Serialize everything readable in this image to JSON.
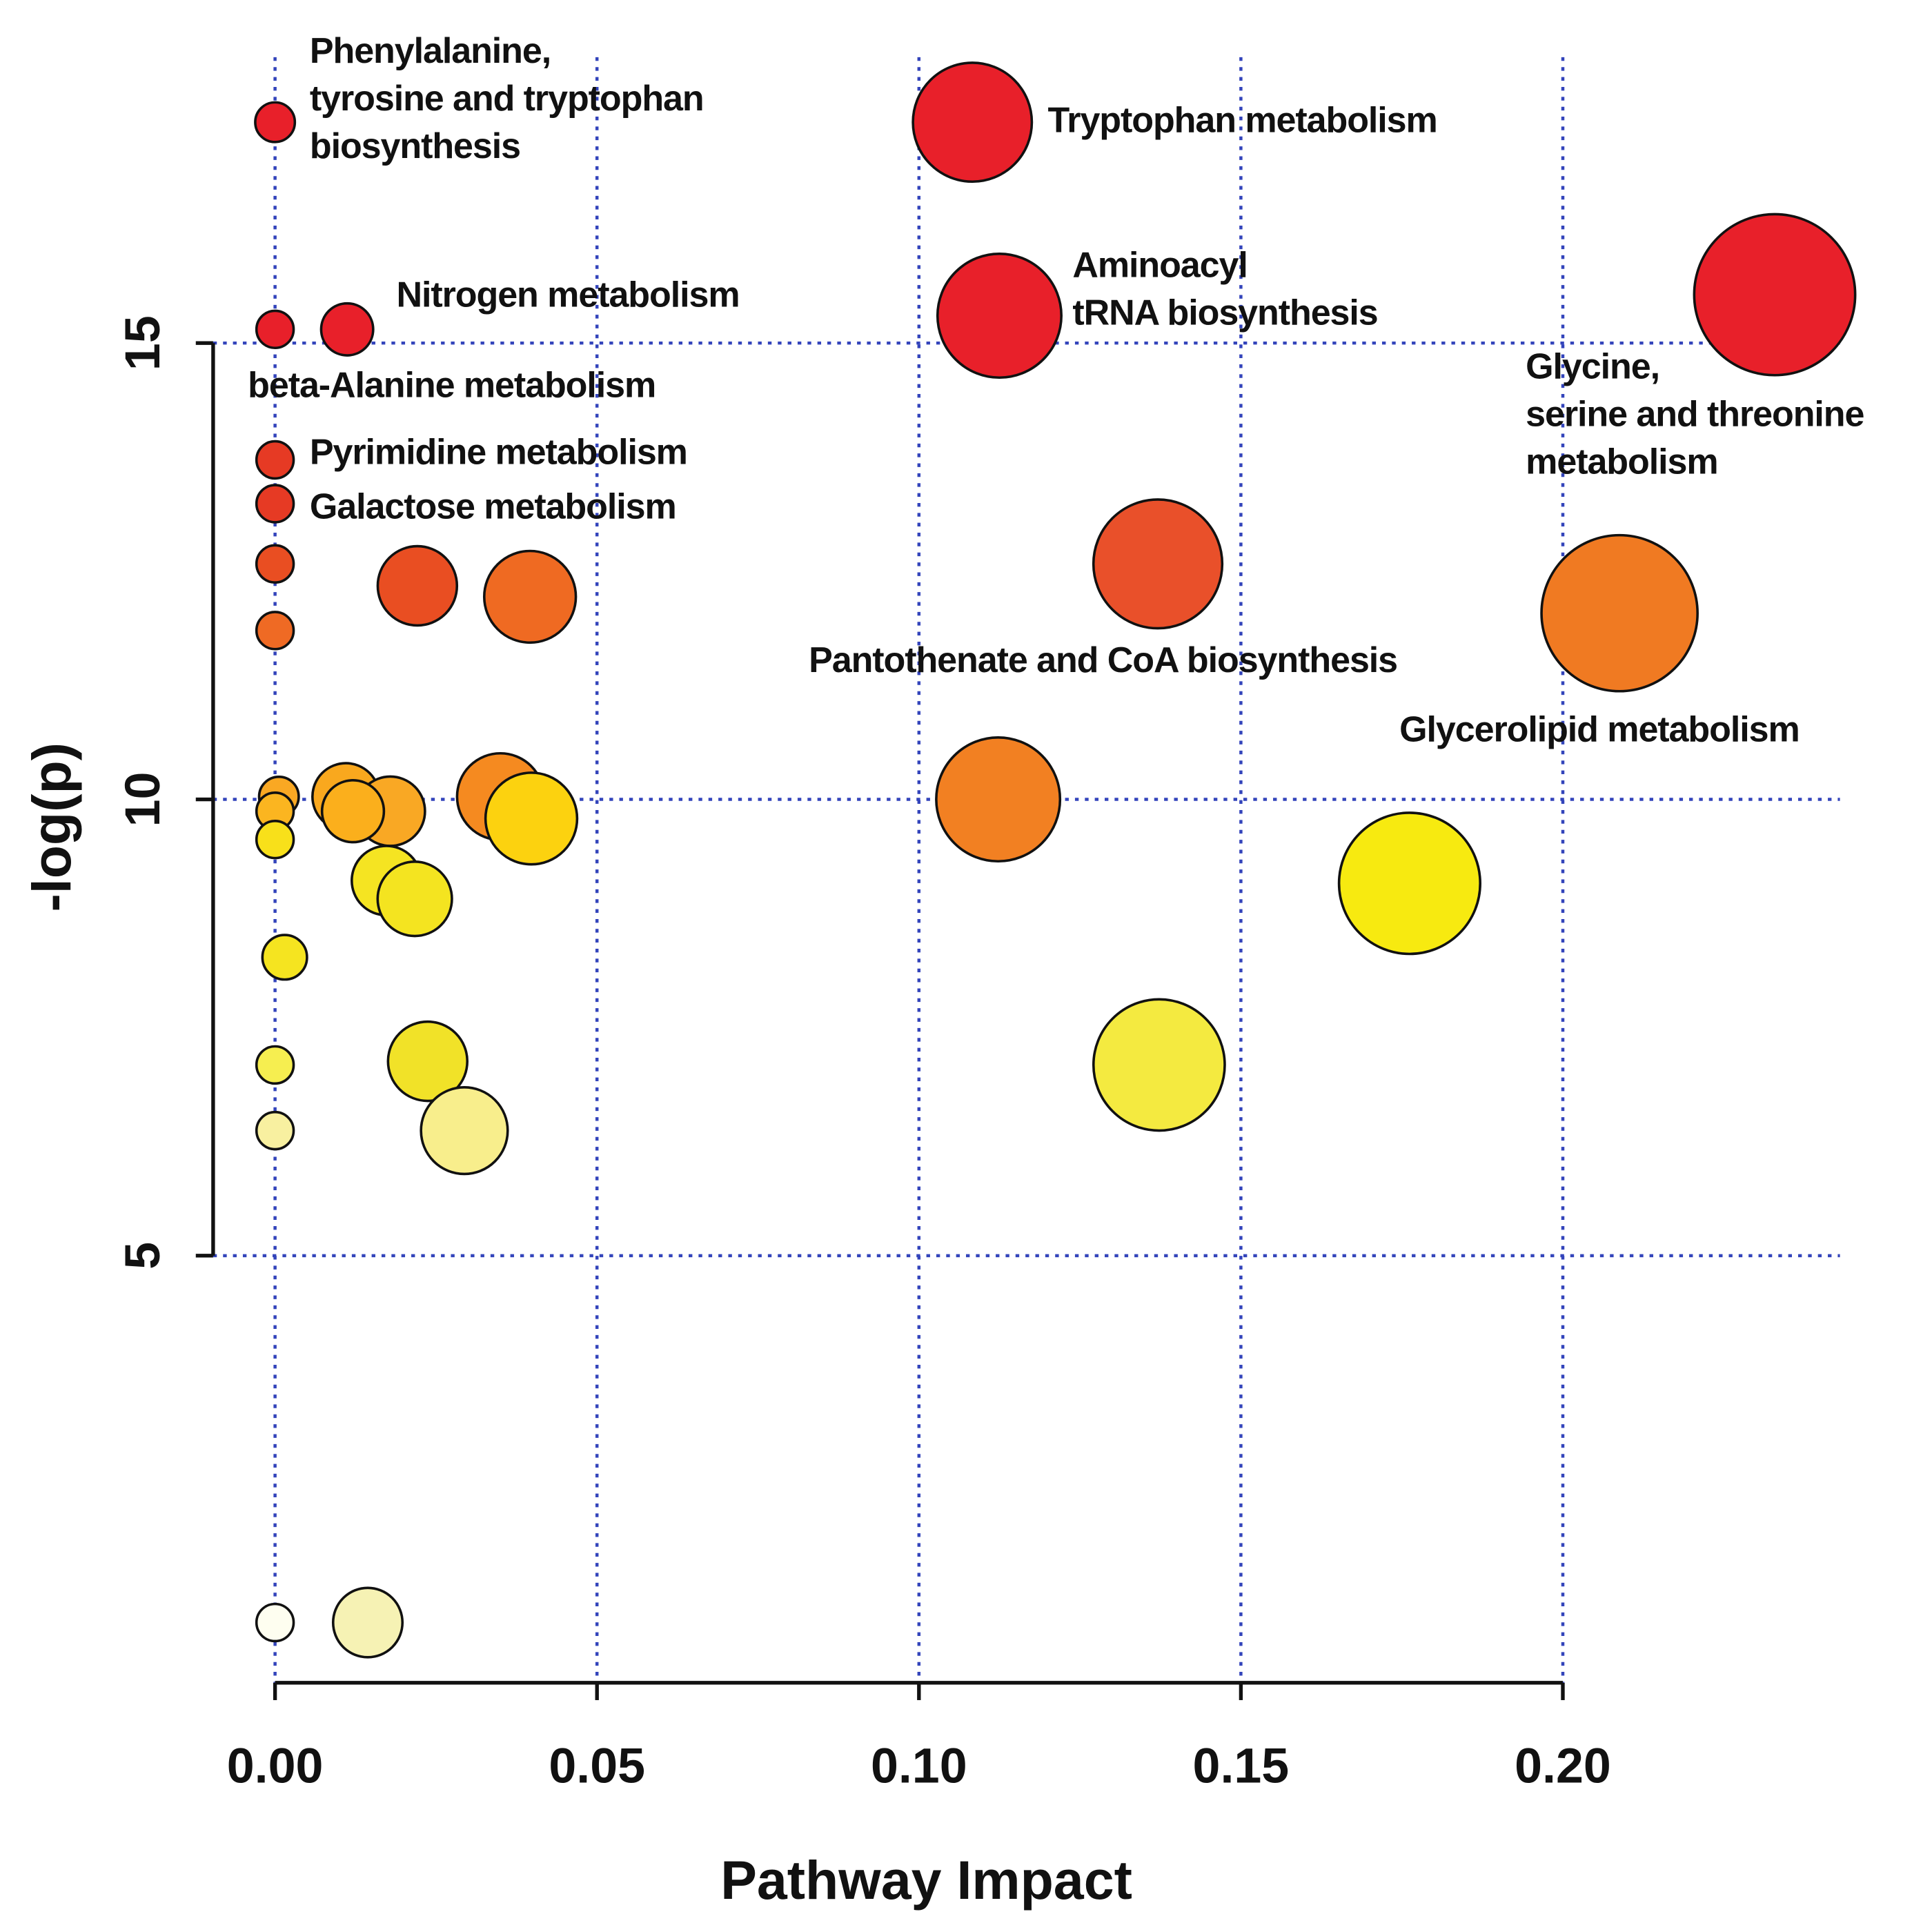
{
  "chart_data": {
    "type": "bubble",
    "xlabel": "Pathway Impact",
    "ylabel": "-log(p)",
    "xlim": [
      -0.006,
      0.244
    ],
    "ylim": [
      0.32,
      18.2
    ],
    "xticks": [
      {
        "value": 0,
        "label": "0.00"
      },
      {
        "value": 0.05,
        "label": "0.05"
      },
      {
        "value": 0.1,
        "label": "0.10"
      },
      {
        "value": 0.15,
        "label": "0.15"
      },
      {
        "value": 0.2,
        "label": "0.20"
      }
    ],
    "yticks": [
      5,
      10,
      15
    ],
    "grid": true,
    "grid_color": "#3344bb",
    "x": [
      0,
      0.1083,
      0,
      0.0112,
      0.1125,
      0.2329,
      0,
      0,
      0,
      0.0221,
      0.0396,
      0.1371,
      0.2088,
      0,
      0.1123,
      0.0006,
      0,
      0,
      0.011,
      0.0179,
      0.0121,
      0.035,
      0.0398,
      0.1762,
      0.0173,
      0.0217,
      0.0015,
      0,
      0.0237,
      0.1373,
      0,
      0.0294,
      0,
      0.0144
    ],
    "series": [
      {
        "values": [
          17.42,
          17.42,
          15.15,
          15.15,
          15.3,
          15.53,
          13.72,
          13.24,
          12.58,
          12.34,
          12.22,
          12.58,
          12.04,
          11.85,
          10.0,
          10.03,
          9.87,
          9.56,
          10.03,
          9.87,
          9.87,
          10.03,
          9.79,
          9.08,
          9.11,
          8.91,
          8.27,
          7.09,
          7.13,
          7.09,
          6.37,
          6.37,
          0.98,
          0.98
        ],
        "sizes": [
          16,
          48,
          15,
          21,
          50,
          65,
          15,
          15,
          15,
          32,
          37,
          52,
          63,
          15,
          50,
          16,
          15,
          15,
          27,
          28,
          25,
          35,
          37,
          57,
          28,
          30,
          18,
          15,
          32,
          53,
          15,
          35,
          15,
          28
        ],
        "colors": [
          "#e8202a",
          "#e8202a",
          "#e8202a",
          "#e8202a",
          "#e8202a",
          "#e8202a",
          "#e63a24",
          "#e63a24",
          "#e94e22",
          "#e94e22",
          "#ef6a22",
          "#e9502a",
          "#f07a22",
          "#ef6a24",
          "#f28022",
          "#f9a823",
          "#fbb520",
          "#f8e01a",
          "#f9a81e",
          "#f9a824",
          "#fbaf1c",
          "#f58a20",
          "#fcd20f",
          "#f7ea10",
          "#f5e422",
          "#f4e420",
          "#f5e420",
          "#f6ee50",
          "#f1e228",
          "#f4ea40",
          "#f8f0a0",
          "#f8ee8c",
          "#fefef0",
          "#f6f2b4"
        ]
      }
    ],
    "annotations": [
      [
        "Phenylalanine,",
        "tyrosine and tryptophan",
        "biosynthesis"
      ],
      [
        "Tryptophan metabolism"
      ],
      [
        "Nitrogen metabolism"
      ],
      [
        "Aminoacyl",
        "tRNA biosynthesis"
      ],
      [
        "beta-Alanine metabolism"
      ],
      [
        "Glycine,",
        "serine and threonine",
        "metabolism"
      ],
      [
        "Pyrimidine metabolism"
      ],
      [
        "Galactose metabolism"
      ],
      [
        "Pantothenate and CoA biosynthesis"
      ],
      [
        "Glycerolipid metabolism"
      ]
    ]
  }
}
